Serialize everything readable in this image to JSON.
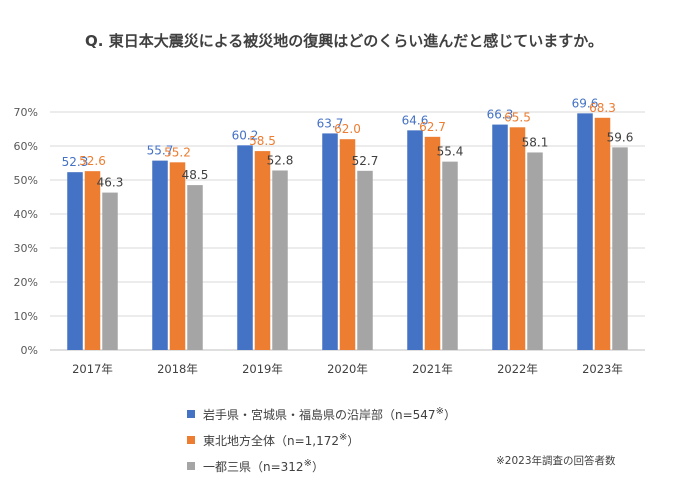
{
  "chart_data": {
    "type": "bar",
    "title": "Q. 東日本大震災による被災地の復興はどのくらい進んだと感じていますか。",
    "categories": [
      "2017年",
      "2018年",
      "2019年",
      "2020年",
      "2021年",
      "2022年",
      "2023年"
    ],
    "series": [
      {
        "name": "岩手県・宮城県・福島県の沿岸部（n=547",
        "note": "※",
        "suffix": "）",
        "color": "#4472C4",
        "values": [
          52.3,
          55.7,
          60.2,
          63.7,
          64.6,
          66.3,
          69.6
        ]
      },
      {
        "name": "東北地方全体（n=1,172",
        "note": "※",
        "suffix": "）",
        "color": "#ED7D31",
        "values": [
          52.6,
          55.2,
          58.5,
          62.0,
          62.7,
          65.5,
          68.3
        ]
      },
      {
        "name": "一都三県（n=312",
        "note": "※",
        "suffix": "）",
        "color": "#A5A5A5",
        "values": [
          46.3,
          48.5,
          52.8,
          52.7,
          55.4,
          58.1,
          59.6
        ]
      }
    ],
    "yticks": [
      "0%",
      "10%",
      "20%",
      "30%",
      "40%",
      "50%",
      "60%",
      "70%"
    ],
    "ylim": [
      0,
      70
    ],
    "grid": true,
    "legend_position": "bottom-left",
    "footnote": "※2023年調査の回答者数"
  }
}
